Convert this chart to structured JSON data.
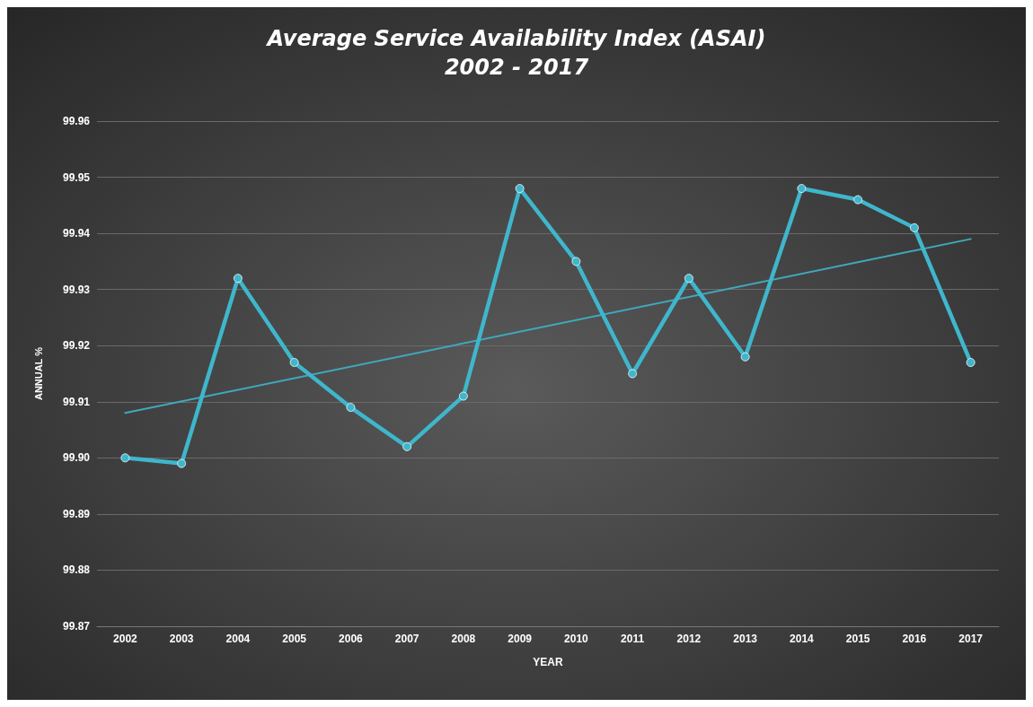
{
  "chart_data": {
    "type": "line",
    "title": "Average Service Availability Index (ASAI)\n2002 - 2017",
    "xlabel": "YEAR",
    "ylabel": "ANNUAL %",
    "x": [
      2002,
      2003,
      2004,
      2005,
      2006,
      2007,
      2008,
      2009,
      2010,
      2011,
      2012,
      2013,
      2014,
      2015,
      2016,
      2017
    ],
    "xlim": [
      2001.5,
      2017.5
    ],
    "xticks": [
      2002,
      2003,
      2004,
      2005,
      2006,
      2007,
      2008,
      2009,
      2010,
      2011,
      2012,
      2013,
      2014,
      2015,
      2016,
      2017
    ],
    "series": [
      {
        "color": "#3fb6cc",
        "marker": "circle",
        "values": [
          99.9,
          99.899,
          99.932,
          99.917,
          99.909,
          99.902,
          99.911,
          99.948,
          99.935,
          99.915,
          99.932,
          99.918,
          99.948,
          99.946,
          99.941,
          99.917
        ]
      },
      {
        "type": "line",
        "color": "#3fa9bd",
        "marker": "none",
        "x": [
          2002,
          2017
        ],
        "values": [
          99.908,
          99.939
        ]
      }
    ],
    "ylim": [
      99.87,
      99.96
    ],
    "yticks": [
      {
        "value": 99.87,
        "label": "99.87"
      },
      {
        "value": 99.88,
        "label": "99.88"
      },
      {
        "value": 99.89,
        "label": "99.89"
      },
      {
        "value": 99.9,
        "label": "99.90"
      },
      {
        "value": 99.91,
        "label": "99.91"
      },
      {
        "value": 99.92,
        "label": "99.92"
      },
      {
        "value": 99.93,
        "label": "99.93"
      },
      {
        "value": 99.94,
        "label": "99.94"
      },
      {
        "value": 99.95,
        "label": "99.95"
      },
      {
        "value": 99.96,
        "label": "99.96"
      }
    ],
    "grid": "y"
  }
}
